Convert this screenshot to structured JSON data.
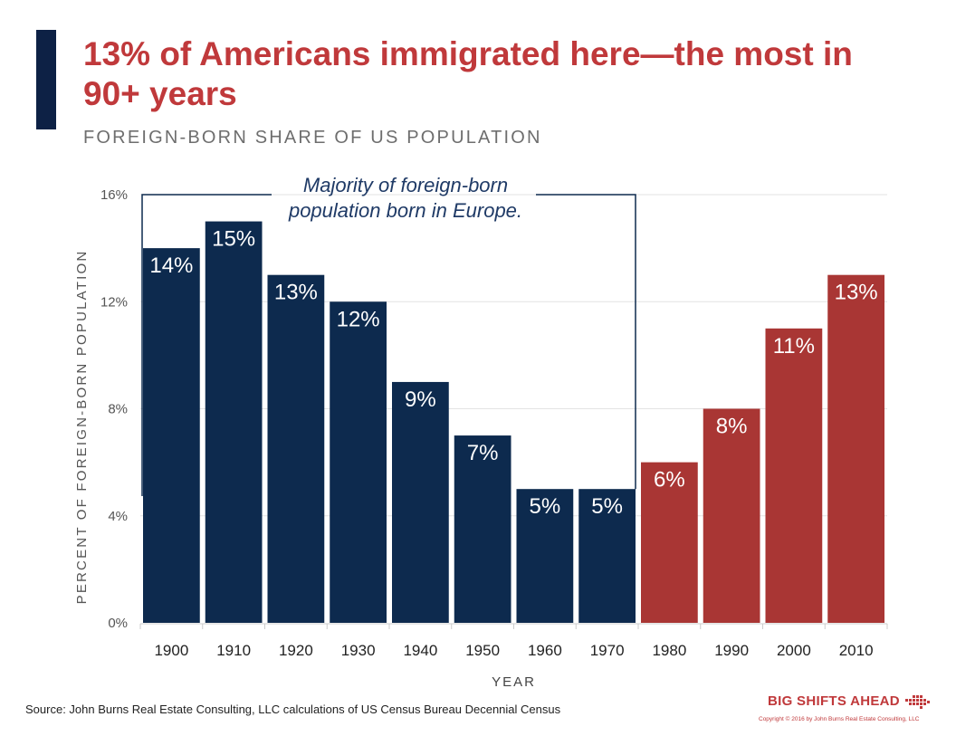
{
  "title": "13% of Americans immigrated here—the most in 90+ years",
  "subtitle": "FOREIGN-BORN SHARE OF US POPULATION",
  "annotation": {
    "line1": "Majority of foreign-born",
    "line2": "population born in Europe."
  },
  "source": "Source: John Burns Real Estate Consulting, LLC calculations of US Census Bureau Decennial Census",
  "brand": "BIG SHIFTS AHEAD",
  "copyright": "Copyright © 2016 by John Burns Real Estate Consulting, LLC",
  "colors": {
    "navy": "#0d2a4e",
    "red": "#a93634",
    "title_red": "#c0393b",
    "accent": "#0d2145"
  },
  "chart_data": {
    "type": "bar",
    "categories": [
      "1900",
      "1910",
      "1920",
      "1930",
      "1940",
      "1950",
      "1960",
      "1970",
      "1980",
      "1990",
      "2000",
      "2010"
    ],
    "values": [
      14,
      15,
      13,
      12,
      9,
      7,
      5,
      5,
      6,
      8,
      11,
      13
    ],
    "data_labels": [
      "14%",
      "15%",
      "13%",
      "12%",
      "9%",
      "7%",
      "5%",
      "5%",
      "6%",
      "8%",
      "11%",
      "13%"
    ],
    "bar_colors": [
      "navy",
      "navy",
      "navy",
      "navy",
      "navy",
      "navy",
      "navy",
      "navy",
      "red",
      "red",
      "red",
      "red"
    ],
    "xlabel": "YEAR",
    "ylabel": "PERCENT OF FOREIGN-BORN POPULATION",
    "yticks": [
      0,
      4,
      8,
      12,
      16
    ],
    "ytick_labels": [
      "0%",
      "4%",
      "8%",
      "12%",
      "16%"
    ],
    "ylim": [
      0,
      16
    ],
    "grid": true,
    "legend": "none"
  }
}
